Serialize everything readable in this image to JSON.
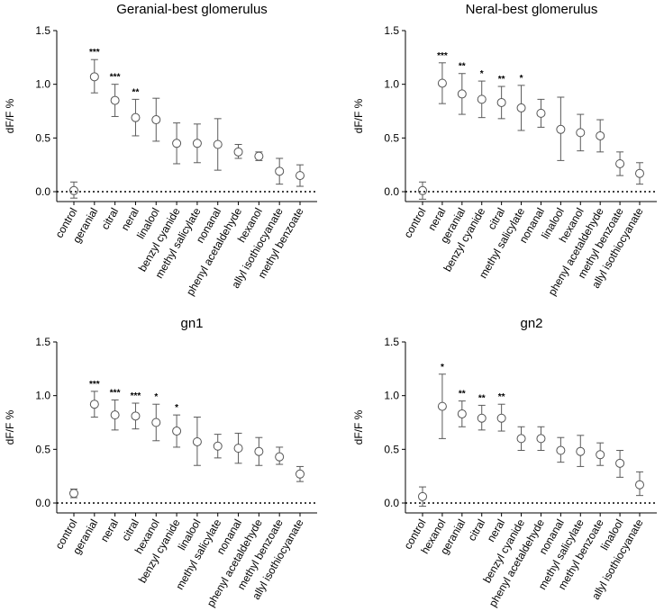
{
  "chart_data": [
    {
      "type": "scatter",
      "title": "Geranial-best glomerulus",
      "ylabel": "dF/F %",
      "ylim": [
        0,
        1.5
      ],
      "yticks": [
        "0.0",
        "0.5",
        "1.0",
        "1.5"
      ],
      "categories": [
        "control",
        "geranial",
        "citral",
        "neral",
        "linalool",
        "benzyl cyanide",
        "methyl salicylate",
        "nonanal",
        "phenyl acetaldehyde",
        "hexanol",
        "allyl isothiocyanate",
        "methyl benzoate"
      ],
      "values": [
        0.01,
        1.07,
        0.85,
        0.69,
        0.67,
        0.45,
        0.45,
        0.44,
        0.37,
        0.33,
        0.19,
        0.15
      ],
      "lower": [
        -0.06,
        0.92,
        0.7,
        0.52,
        0.47,
        0.26,
        0.27,
        0.2,
        0.31,
        0.29,
        0.07,
        0.05
      ],
      "upper": [
        0.09,
        1.23,
        1.0,
        0.86,
        0.87,
        0.64,
        0.63,
        0.68,
        0.44,
        0.37,
        0.31,
        0.25
      ],
      "significance": [
        "",
        "***",
        "***",
        "**",
        "",
        "",
        "",
        "",
        "",
        "",
        "",
        ""
      ]
    },
    {
      "type": "scatter",
      "title": "Neral-best glomerulus",
      "ylabel": "dF/F %",
      "ylim": [
        0,
        1.5
      ],
      "yticks": [
        "0.0",
        "0.5",
        "1.0",
        "1.5"
      ],
      "categories": [
        "control",
        "neral",
        "geranial",
        "benzyl cyanide",
        "citral",
        "methyl salicylate",
        "nonanal",
        "linalool",
        "hexanol",
        "phenyl acetaldehyde",
        "methyl benzoate",
        "allyl isothiocyanate"
      ],
      "values": [
        0.01,
        1.01,
        0.91,
        0.86,
        0.83,
        0.78,
        0.73,
        0.58,
        0.55,
        0.52,
        0.26,
        0.17
      ],
      "lower": [
        -0.07,
        0.82,
        0.72,
        0.69,
        0.68,
        0.57,
        0.6,
        0.29,
        0.38,
        0.37,
        0.15,
        0.07
      ],
      "upper": [
        0.09,
        1.2,
        1.1,
        1.03,
        0.98,
        0.99,
        0.86,
        0.88,
        0.72,
        0.67,
        0.37,
        0.27
      ],
      "significance": [
        "",
        "***",
        "**",
        "*",
        "**",
        "*",
        "",
        "",
        "",
        "",
        "",
        ""
      ]
    },
    {
      "type": "scatter",
      "title": "gn1",
      "ylabel": "dF/F %",
      "ylim": [
        0,
        1.5
      ],
      "yticks": [
        "0.0",
        "0.5",
        "1.0",
        "1.5"
      ],
      "categories": [
        "control",
        "geranial",
        "neral",
        "citral",
        "hexanol",
        "benzyl cyanide",
        "linalool",
        "methyl salicylate",
        "nonanal",
        "phenyl acetaldehyde",
        "methyl benzoate",
        "allyl isothiocyanate"
      ],
      "values": [
        0.09,
        0.92,
        0.82,
        0.81,
        0.75,
        0.67,
        0.57,
        0.53,
        0.51,
        0.48,
        0.43,
        0.27
      ],
      "lower": [
        0.05,
        0.8,
        0.68,
        0.69,
        0.58,
        0.52,
        0.35,
        0.42,
        0.37,
        0.35,
        0.36,
        0.2
      ],
      "upper": [
        0.13,
        1.04,
        0.96,
        0.93,
        0.92,
        0.82,
        0.8,
        0.64,
        0.65,
        0.61,
        0.52,
        0.34
      ],
      "significance": [
        "",
        "***",
        "***",
        "***",
        "*",
        "*",
        "",
        "",
        "",
        "",
        "",
        ""
      ]
    },
    {
      "type": "scatter",
      "title": "gn2",
      "ylabel": "dF/F %",
      "ylim": [
        0,
        1.5
      ],
      "yticks": [
        "0.0",
        "0.5",
        "1.0",
        "1.5"
      ],
      "categories": [
        "control",
        "hexanol",
        "geranial",
        "citral",
        "neral",
        "benzyl cyanide",
        "phenyl acetaldehyde",
        "nonanal",
        "methyl salicylate",
        "methyl benzoate",
        "linalool",
        "allyl isothiocyanate"
      ],
      "values": [
        0.06,
        0.9,
        0.83,
        0.79,
        0.79,
        0.6,
        0.6,
        0.49,
        0.48,
        0.45,
        0.37,
        0.17
      ],
      "lower": [
        -0.03,
        0.6,
        0.71,
        0.68,
        0.67,
        0.49,
        0.49,
        0.38,
        0.34,
        0.35,
        0.24,
        0.07
      ],
      "upper": [
        0.15,
        1.2,
        0.95,
        0.91,
        0.92,
        0.71,
        0.71,
        0.61,
        0.63,
        0.56,
        0.49,
        0.29
      ],
      "significance": [
        "",
        "*",
        "**",
        "**",
        "**",
        "",
        "",
        "",
        "",
        "",
        "",
        ""
      ]
    }
  ]
}
